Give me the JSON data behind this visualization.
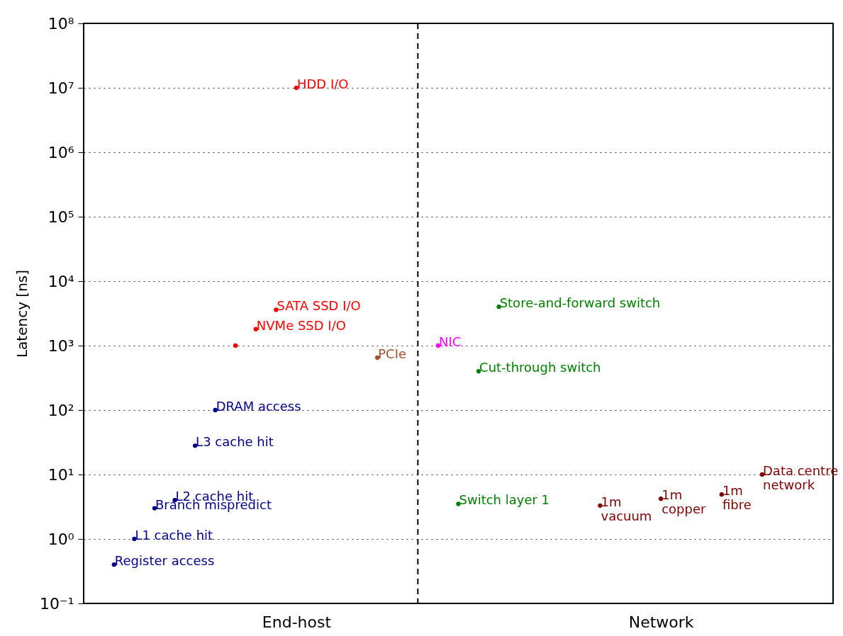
{
  "chart_data": {
    "type": "scatter",
    "ylabel": "Latency [ns]",
    "log": "y",
    "grid": "y",
    "marker": "circle",
    "categories": [
      null,
      null,
      null,
      null,
      null,
      null,
      null,
      null,
      null,
      null,
      "End-host",
      null,
      null,
      null,
      null,
      null,
      null,
      null,
      null,
      null,
      null,
      null,
      null,
      null,
      null,
      null,
      null,
      null,
      "Network",
      null,
      null,
      null,
      null,
      null,
      null,
      null,
      null
    ],
    "ylim": [
      0.1,
      100000000
    ],
    "yticks": [
      {
        "value": 0.1,
        "label": "10⁻¹"
      },
      {
        "value": 1,
        "label": "10⁰"
      },
      {
        "value": 10,
        "label": "10¹"
      },
      {
        "value": 100,
        "label": "10²"
      },
      {
        "value": 1000,
        "label": "10³"
      },
      {
        "value": 10000,
        "label": "10⁴"
      },
      {
        "value": 100000,
        "label": "10⁵"
      },
      {
        "value": 1000000,
        "label": "10⁶"
      },
      {
        "value": 10000000,
        "label": "10⁷"
      },
      {
        "value": 100000000,
        "label": "10⁸"
      }
    ],
    "series": [
      {
        "name": "Register access",
        "color": "#00008b",
        "values": [
          null,
          0.4,
          null,
          null,
          null,
          null,
          null,
          null,
          null,
          null,
          null,
          null,
          null,
          null,
          null,
          null,
          null,
          null,
          null,
          null,
          null,
          null,
          null,
          null,
          null,
          null,
          null,
          null,
          null,
          null,
          null,
          null,
          null,
          null,
          null,
          null,
          null
        ]
      },
      {
        "name": "L1 cache hit",
        "color": "#00008b",
        "values": [
          null,
          null,
          1,
          null,
          null,
          null,
          null,
          null,
          null,
          null,
          null,
          null,
          null,
          null,
          null,
          null,
          null,
          null,
          null,
          null,
          null,
          null,
          null,
          null,
          null,
          null,
          null,
          null,
          null,
          null,
          null,
          null,
          null,
          null,
          null,
          null,
          null
        ]
      },
      {
        "name": "Branch mispredict",
        "color": "#00008b",
        "values": [
          null,
          null,
          null,
          3,
          null,
          null,
          null,
          null,
          null,
          null,
          null,
          null,
          null,
          null,
          null,
          null,
          null,
          null,
          null,
          null,
          null,
          null,
          null,
          null,
          null,
          null,
          null,
          null,
          null,
          null,
          null,
          null,
          null,
          null,
          null,
          null,
          null
        ]
      },
      {
        "name": "L2 cache hit",
        "color": "#00008b",
        "values": [
          null,
          null,
          null,
          null,
          4,
          null,
          null,
          null,
          null,
          null,
          null,
          null,
          null,
          null,
          null,
          null,
          null,
          null,
          null,
          null,
          null,
          null,
          null,
          null,
          null,
          null,
          null,
          null,
          null,
          null,
          null,
          null,
          null,
          null,
          null,
          null,
          null
        ]
      },
      {
        "name": "L3 cache hit",
        "color": "#00008b",
        "values": [
          null,
          null,
          null,
          null,
          null,
          28,
          null,
          null,
          null,
          null,
          null,
          null,
          null,
          null,
          null,
          null,
          null,
          null,
          null,
          null,
          null,
          null,
          null,
          null,
          null,
          null,
          null,
          null,
          null,
          null,
          null,
          null,
          null,
          null,
          null,
          null,
          null
        ]
      },
      {
        "name": "DRAM access",
        "color": "#00008b",
        "values": [
          null,
          null,
          null,
          null,
          null,
          null,
          100,
          null,
          null,
          null,
          null,
          null,
          null,
          null,
          null,
          null,
          null,
          null,
          null,
          null,
          null,
          null,
          null,
          null,
          null,
          null,
          null,
          null,
          null,
          null,
          null,
          null,
          null,
          null,
          null,
          null,
          null
        ]
      },
      {
        "color": "#ff0000",
        "values": [
          null,
          null,
          null,
          null,
          null,
          null,
          null,
          1000,
          null,
          null,
          null,
          null,
          null,
          null,
          null,
          null,
          null,
          null,
          null,
          null,
          null,
          null,
          null,
          null,
          null,
          null,
          null,
          null,
          null,
          null,
          null,
          null,
          null,
          null,
          null,
          null,
          null
        ]
      },
      {
        "name": "NVMe SSD I/O",
        "color": "#ff0000",
        "values": [
          null,
          null,
          null,
          null,
          null,
          null,
          null,
          null,
          1800,
          null,
          null,
          null,
          null,
          null,
          null,
          null,
          null,
          null,
          null,
          null,
          null,
          null,
          null,
          null,
          null,
          null,
          null,
          null,
          null,
          null,
          null,
          null,
          null,
          null,
          null,
          null,
          null
        ]
      },
      {
        "name": "SATA SSD I/O",
        "color": "#ff0000",
        "values": [
          null,
          null,
          null,
          null,
          null,
          null,
          null,
          null,
          null,
          3600,
          null,
          null,
          null,
          null,
          null,
          null,
          null,
          null,
          null,
          null,
          null,
          null,
          null,
          null,
          null,
          null,
          null,
          null,
          null,
          null,
          null,
          null,
          null,
          null,
          null,
          null,
          null
        ]
      },
      {
        "name": "HDD I/O",
        "color": "#ff0000",
        "values": [
          null,
          null,
          null,
          null,
          null,
          null,
          null,
          null,
          null,
          null,
          10000000,
          null,
          null,
          null,
          null,
          null,
          null,
          null,
          null,
          null,
          null,
          null,
          null,
          null,
          null,
          null,
          null,
          null,
          null,
          null,
          null,
          null,
          null,
          null,
          null,
          null,
          null
        ]
      },
      {
        "name": "PCIe",
        "color": "#a0522d",
        "values": [
          null,
          null,
          null,
          null,
          null,
          null,
          null,
          null,
          null,
          null,
          null,
          null,
          null,
          null,
          650,
          null,
          null,
          null,
          null,
          null,
          null,
          null,
          null,
          null,
          null,
          null,
          null,
          null,
          null,
          null,
          null,
          null,
          null,
          null,
          null,
          null,
          null
        ]
      },
      {
        "name": "NIC",
        "color": "#ff00ff",
        "values": [
          null,
          null,
          null,
          null,
          null,
          null,
          null,
          null,
          null,
          null,
          null,
          null,
          null,
          null,
          null,
          null,
          null,
          1000,
          null,
          null,
          null,
          null,
          null,
          null,
          null,
          null,
          null,
          null,
          null,
          null,
          null,
          null,
          null,
          null,
          null,
          null,
          null
        ]
      },
      {
        "name": "Switch layer 1",
        "color": "#008000",
        "values": [
          null,
          null,
          null,
          null,
          null,
          null,
          null,
          null,
          null,
          null,
          null,
          null,
          null,
          null,
          null,
          null,
          null,
          null,
          3.5,
          null,
          null,
          null,
          null,
          null,
          null,
          null,
          null,
          null,
          null,
          null,
          null,
          null,
          null,
          null,
          null,
          null,
          null
        ]
      },
      {
        "name": "Cut-through switch",
        "color": "#008000",
        "values": [
          null,
          null,
          null,
          null,
          null,
          null,
          null,
          null,
          null,
          null,
          null,
          null,
          null,
          null,
          null,
          null,
          null,
          null,
          null,
          400,
          null,
          null,
          null,
          null,
          null,
          null,
          null,
          null,
          null,
          null,
          null,
          null,
          null,
          null,
          null,
          null,
          null
        ]
      },
      {
        "name": "Store-and-forward switch",
        "color": "#008000",
        "values": [
          null,
          null,
          null,
          null,
          null,
          null,
          null,
          null,
          null,
          null,
          null,
          null,
          null,
          null,
          null,
          null,
          null,
          null,
          null,
          null,
          4000,
          null,
          null,
          null,
          null,
          null,
          null,
          null,
          null,
          null,
          null,
          null,
          null,
          null,
          null,
          null,
          null
        ]
      },
      {
        "name": "1m\nvacuum",
        "color": "#800000",
        "values": [
          null,
          null,
          null,
          null,
          null,
          null,
          null,
          null,
          null,
          null,
          null,
          null,
          null,
          null,
          null,
          null,
          null,
          null,
          null,
          null,
          null,
          null,
          null,
          null,
          null,
          3.3,
          null,
          null,
          null,
          null,
          null,
          null,
          null,
          null,
          null,
          null,
          null
        ]
      },
      {
        "name": "1m\ncopper",
        "color": "#800000",
        "values": [
          null,
          null,
          null,
          null,
          null,
          null,
          null,
          null,
          null,
          null,
          null,
          null,
          null,
          null,
          null,
          null,
          null,
          null,
          null,
          null,
          null,
          null,
          null,
          null,
          null,
          null,
          null,
          null,
          4.2,
          null,
          null,
          null,
          null,
          null,
          null,
          null,
          null
        ]
      },
      {
        "name": "1m\nfibre",
        "color": "#800000",
        "values": [
          null,
          null,
          null,
          null,
          null,
          null,
          null,
          null,
          null,
          null,
          null,
          null,
          null,
          null,
          null,
          null,
          null,
          null,
          null,
          null,
          null,
          null,
          null,
          null,
          null,
          null,
          null,
          null,
          null,
          null,
          null,
          4.9,
          null,
          null,
          null,
          null,
          null
        ]
      },
      {
        "name": "Data centre\nnetwork",
        "color": "#800000",
        "values": [
          null,
          null,
          null,
          null,
          null,
          null,
          null,
          null,
          null,
          null,
          null,
          null,
          null,
          null,
          null,
          null,
          null,
          null,
          null,
          null,
          null,
          null,
          null,
          null,
          null,
          null,
          null,
          null,
          null,
          null,
          null,
          null,
          null,
          10,
          null,
          null,
          null
        ]
      }
    ]
  }
}
